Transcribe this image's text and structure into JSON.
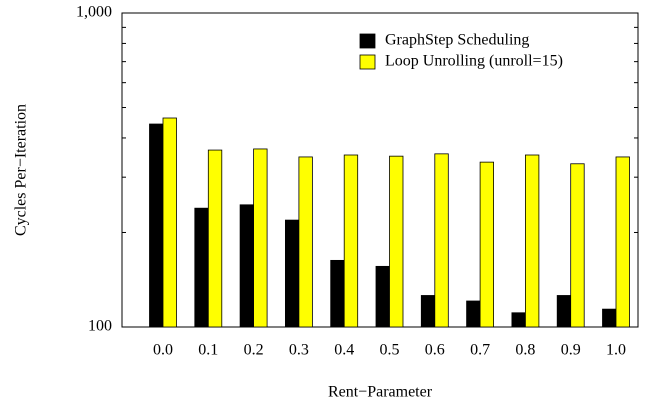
{
  "chart_data": {
    "type": "bar",
    "x_label": "Rent−Parameter",
    "y_label": "Cycles Per−Iteration",
    "categories": [
      "0.0",
      "0.1",
      "0.2",
      "0.3",
      "0.4",
      "0.5",
      "0.6",
      "0.7",
      "0.8",
      "0.9",
      "1.0"
    ],
    "series": [
      {
        "name": "GraphStep Scheduling",
        "color": "#000000",
        "values": [
          443,
          239,
          245,
          219,
          163,
          156,
          126,
          121,
          111,
          126,
          114
        ]
      },
      {
        "name": "Loop Unrolling (unroll=15)",
        "color": "#ffff00",
        "values": [
          463,
          366,
          369,
          348,
          353,
          350,
          356,
          335,
          353,
          331,
          348
        ]
      }
    ],
    "ylim": [
      100,
      1000
    ],
    "yticks": [
      100,
      {
        "value": 1000,
        "label": "1,000"
      }
    ],
    "yminorticks": [
      200,
      300,
      400,
      500,
      600,
      700,
      800,
      900
    ],
    "log_y": true,
    "legend": "top-right"
  }
}
